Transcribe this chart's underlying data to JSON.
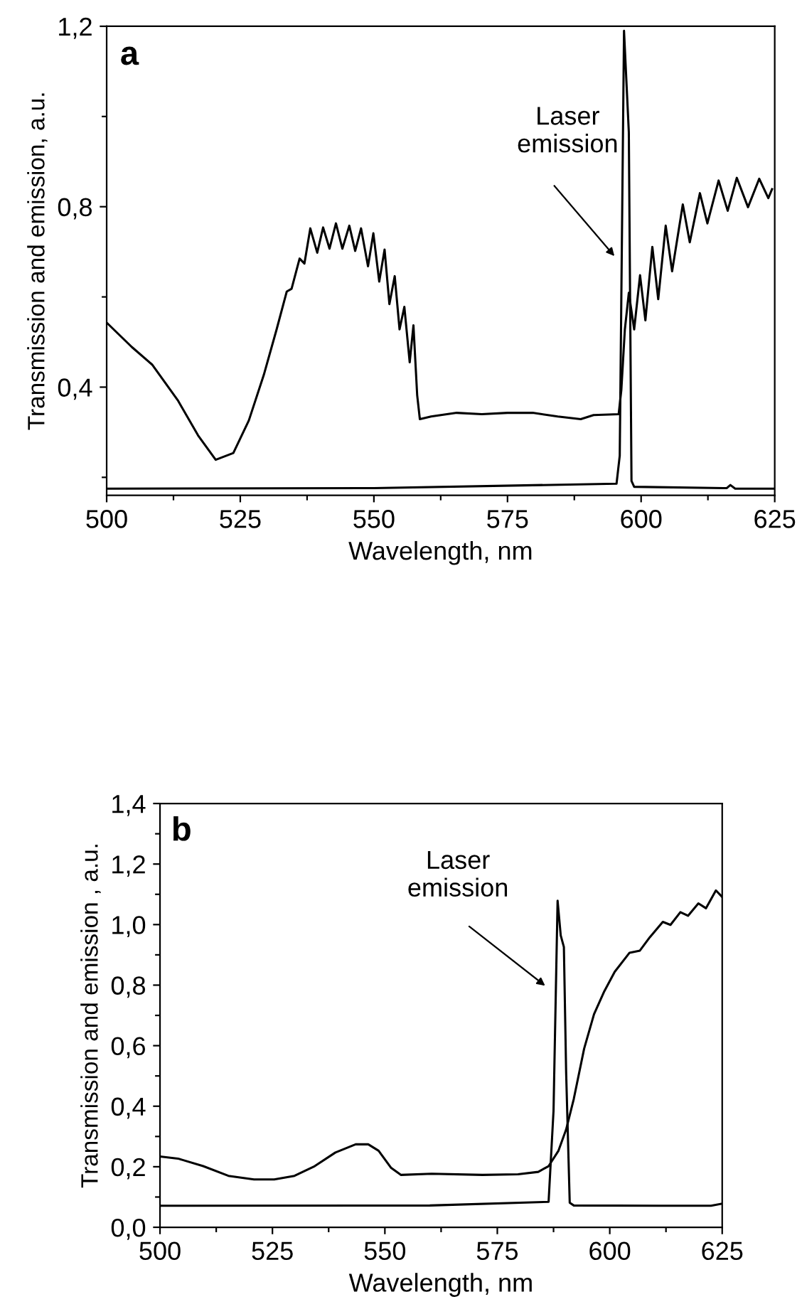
{
  "chart_data": [
    {
      "type": "line",
      "xlabel": "Wavelength, nm",
      "ylabel": "Transmission and emission, a.u.",
      "xlim": [
        500,
        625
      ],
      "ylim": [
        0.16,
        1.2
      ],
      "xticks": [
        500,
        {
          "value": 512.5,
          "label": null
        },
        525,
        {
          "value": 537.5,
          "label": null
        },
        550,
        {
          "value": 562.5,
          "label": null
        },
        575,
        {
          "value": 587.5,
          "label": null
        },
        600,
        {
          "value": 612.5,
          "label": null
        },
        625
      ],
      "yticks": [
        {
          "value": 0.2,
          "label": null
        },
        {
          "value": 0.4,
          "label": "0,4"
        },
        {
          "value": 0.6,
          "label": null
        },
        {
          "value": 0.8,
          "label": "0,8"
        },
        {
          "value": 1.0,
          "label": null
        },
        {
          "value": 1.2,
          "label": "1,2"
        }
      ],
      "annotations": [
        "a",
        "Laser\nemission"
      ],
      "series": [
        {
          "color": "#000000",
          "x": [
            500,
            504.7,
            508.5,
            513.3,
            517.1,
            520.4,
            523.7,
            526.6,
            529.4,
            531.8,
            533.7,
            534.6,
            536.1,
            537.0,
            538.1,
            539.4,
            540.5,
            541.7,
            542.9,
            544.1,
            545.4,
            546.5,
            547.6,
            548.9,
            549.9,
            551.0,
            552.0,
            552.9,
            553.9,
            554.8,
            555.7,
            556.7,
            557.4,
            558.1,
            558.6,
            560.7,
            565.5,
            570.2,
            575.0,
            579.7,
            584.4,
            588.7,
            591.1,
            595.8,
            596.3,
            596.96,
            597.7,
            598.7,
            599.8,
            600.8,
            602.1,
            603.2,
            604.6,
            605.8,
            607.8,
            609.1,
            611.0,
            612.4,
            614.5,
            616.2,
            617.9,
            620.0,
            622.1,
            623.8,
            624.5
          ],
          "values": [
            0.543,
            0.489,
            0.45,
            0.371,
            0.293,
            0.239,
            0.254,
            0.326,
            0.427,
            0.528,
            0.612,
            0.618,
            0.685,
            0.674,
            0.752,
            0.698,
            0.754,
            0.707,
            0.763,
            0.707,
            0.758,
            0.702,
            0.752,
            0.668,
            0.741,
            0.634,
            0.705,
            0.584,
            0.646,
            0.528,
            0.578,
            0.455,
            0.537,
            0.382,
            0.329,
            0.335,
            0.343,
            0.34,
            0.343,
            0.343,
            0.335,
            0.329,
            0.338,
            0.34,
            0.394,
            0.528,
            0.609,
            0.528,
            0.648,
            0.548,
            0.711,
            0.595,
            0.758,
            0.657,
            0.805,
            0.721,
            0.83,
            0.763,
            0.858,
            0.791,
            0.864,
            0.799,
            0.862,
            0.819,
            0.839
          ]
        },
        {
          "color": "#000000",
          "x": [
            500,
            550,
            595.4,
            596.0,
            596.8,
            597.7,
            598.2,
            598.7,
            616.0,
            616.7,
            617.6,
            625
          ],
          "values": [
            0.175,
            0.176,
            0.186,
            0.248,
            1.19,
            0.965,
            0.192,
            0.179,
            0.176,
            0.183,
            0.175,
            0.175
          ]
        }
      ]
    },
    {
      "type": "line",
      "xlabel": "Wavelength, nm",
      "ylabel": "Transmission and emission , a.u.",
      "xlim": [
        500,
        625
      ],
      "ylim": [
        0,
        1.4
      ],
      "xticks": [
        500,
        {
          "value": 512.5,
          "label": null
        },
        525,
        {
          "value": 537.5,
          "label": null
        },
        550,
        {
          "value": 562.5,
          "label": null
        },
        575,
        {
          "value": 587.5,
          "label": null
        },
        600,
        {
          "value": 612.5,
          "label": null
        },
        625
      ],
      "yticks": [
        {
          "value": 0.0,
          "label": "0,0"
        },
        {
          "value": 0.1,
          "label": null
        },
        {
          "value": 0.2,
          "label": "0,2"
        },
        {
          "value": 0.3,
          "label": null
        },
        {
          "value": 0.4,
          "label": "0,4"
        },
        {
          "value": 0.5,
          "label": null
        },
        {
          "value": 0.6,
          "label": "0,6"
        },
        {
          "value": 0.7,
          "label": null
        },
        {
          "value": 0.8,
          "label": "0,8"
        },
        {
          "value": 0.9,
          "label": null
        },
        {
          "value": 1.0,
          "label": "1,0"
        },
        {
          "value": 1.1,
          "label": null
        },
        {
          "value": 1.2,
          "label": "1,2"
        },
        {
          "value": 1.3,
          "label": null
        },
        {
          "value": 1.4,
          "label": "1,4"
        }
      ],
      "annotations": [
        "b",
        "Laser\nemission"
      ],
      "series": [
        {
          "color": "#000000",
          "x": [
            500,
            504.0,
            509.6,
            515.2,
            520.9,
            525.4,
            529.9,
            534.4,
            539.0,
            543.5,
            546.3,
            548.6,
            551.4,
            553.6,
            560.4,
            571.7,
            579.6,
            584.1,
            586.4,
            588.6,
            590.3,
            592.0,
            594.3,
            596.5,
            598.8,
            601.1,
            604.4,
            606.7,
            608.9,
            611.8,
            613.5,
            615.7,
            617.4,
            619.7,
            621.4,
            623.6,
            625
          ],
          "values": [
            0.234,
            0.227,
            0.202,
            0.17,
            0.158,
            0.158,
            0.17,
            0.202,
            0.247,
            0.274,
            0.274,
            0.253,
            0.196,
            0.173,
            0.177,
            0.173,
            0.175,
            0.183,
            0.202,
            0.253,
            0.323,
            0.424,
            0.59,
            0.704,
            0.78,
            0.844,
            0.907,
            0.914,
            0.958,
            1.009,
            0.999,
            1.041,
            1.029,
            1.07,
            1.054,
            1.113,
            1.091
          ]
        },
        {
          "color": "#000000",
          "x": [
            500,
            560,
            586.4,
            587.5,
            588.4,
            589.1,
            589.8,
            590.3,
            591.1,
            592.0,
            611.2,
            622.5,
            625
          ],
          "values": [
            0.071,
            0.072,
            0.084,
            0.386,
            1.079,
            0.964,
            0.926,
            0.513,
            0.081,
            0.072,
            0.071,
            0.071,
            0.078
          ]
        }
      ]
    }
  ]
}
